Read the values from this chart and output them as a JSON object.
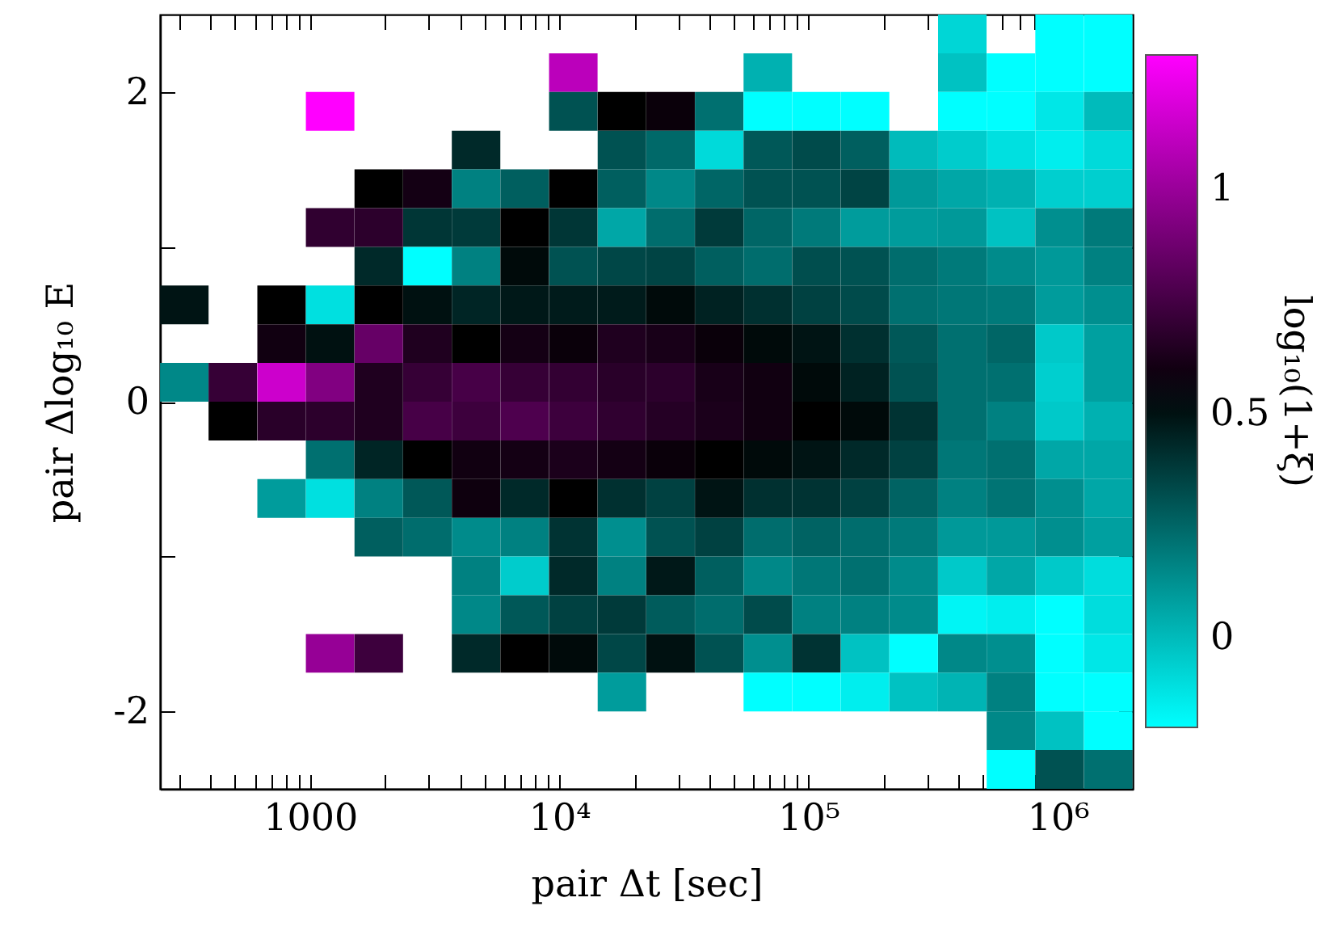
{
  "chart_data": {
    "type": "heatmap",
    "xlabel": "pair Δt [sec]",
    "ylabel": "pair Δlog₁₀ E",
    "clabel": "log₁₀(1+ξ)",
    "log": "x",
    "x": [
      313,
      490,
      769,
      1204,
      1887,
      2958,
      4636,
      7264,
      11385,
      17841,
      27958,
      43815,
      68662,
      107600,
      168620,
      264240,
      414090,
      648920,
      1016900,
      1593600
    ],
    "y": [
      2.375,
      2.125,
      1.875,
      1.625,
      1.375,
      1.125,
      0.875,
      0.625,
      0.375,
      0.125,
      -0.125,
      -0.375,
      -0.625,
      -0.875,
      -1.125,
      -1.375,
      -1.625,
      -1.875,
      -2.125,
      -2.375
    ],
    "xlim": [
      250,
      2000000
    ],
    "xticks": [
      {
        "value": 300,
        "label": null
      },
      {
        "value": 400,
        "label": null
      },
      {
        "value": 500,
        "label": null
      },
      {
        "value": 600,
        "label": null
      },
      {
        "value": 700,
        "label": null
      },
      {
        "value": 800,
        "label": null
      },
      {
        "value": 900,
        "label": null
      },
      1000,
      {
        "value": 2000,
        "label": null
      },
      {
        "value": 3000,
        "label": null
      },
      {
        "value": 4000,
        "label": null
      },
      {
        "value": 5000,
        "label": null
      },
      {
        "value": 6000,
        "label": null
      },
      {
        "value": 7000,
        "label": null
      },
      {
        "value": 8000,
        "label": null
      },
      {
        "value": 9000,
        "label": null
      },
      {
        "value": 10000,
        "label": "10⁴"
      },
      {
        "value": 20000,
        "label": null
      },
      {
        "value": 30000,
        "label": null
      },
      {
        "value": 40000,
        "label": null
      },
      {
        "value": 50000,
        "label": null
      },
      {
        "value": 60000,
        "label": null
      },
      {
        "value": 70000,
        "label": null
      },
      {
        "value": 80000,
        "label": null
      },
      {
        "value": 90000,
        "label": null
      },
      {
        "value": 100000,
        "label": "10⁵"
      },
      {
        "value": 200000,
        "label": null
      },
      {
        "value": 300000,
        "label": null
      },
      {
        "value": 400000,
        "label": null
      },
      {
        "value": 500000,
        "label": null
      },
      {
        "value": 600000,
        "label": null
      },
      {
        "value": 700000,
        "label": null
      },
      {
        "value": 800000,
        "label": null
      },
      {
        "value": 900000,
        "label": null
      },
      {
        "value": 1000000,
        "label": "10⁶"
      }
    ],
    "ylim": [
      -2.5,
      2.5
    ],
    "yticks": [
      -2,
      {
        "value": -1,
        "label": null
      },
      0,
      {
        "value": 1,
        "label": null
      },
      2
    ],
    "clim": [
      -0.2,
      1.3
    ],
    "cticks": [
      0,
      0.5,
      1
    ],
    "cells": [
      [
        null,
        null,
        null,
        null,
        null,
        null,
        null,
        null,
        null,
        null,
        null,
        null,
        null,
        null,
        null,
        null,
        -0.08,
        null,
        -0.2,
        -0.2
      ],
      [
        null,
        null,
        null,
        null,
        null,
        null,
        null,
        null,
        1.1,
        null,
        null,
        null,
        0.03,
        null,
        null,
        null,
        -0.02,
        -0.2,
        -0.2,
        -0.2
      ],
      [
        null,
        null,
        null,
        1.3,
        null,
        null,
        null,
        null,
        0.31,
        0.55,
        0.58,
        0.22,
        -0.2,
        -0.2,
        -0.2,
        null,
        -0.2,
        -0.2,
        -0.13,
        0
      ],
      [
        null,
        null,
        null,
        null,
        null,
        null,
        0.43,
        null,
        null,
        0.31,
        0.24,
        -0.09,
        0.29,
        0.33,
        0.27,
        0,
        -0.05,
        -0.11,
        -0.15,
        -0.09
      ],
      [
        null,
        null,
        null,
        null,
        0.55,
        0.61,
        0.17,
        0.27,
        0.55,
        0.27,
        0.15,
        0.25,
        0.31,
        0.31,
        0.35,
        0.1,
        0.06,
        0.03,
        -0.06,
        -0.06
      ],
      [
        null,
        null,
        null,
        0.69,
        0.68,
        0.39,
        0.38,
        0.55,
        0.39,
        0.06,
        0.23,
        0.38,
        0.25,
        0.19,
        0.09,
        0.09,
        0.1,
        -0.02,
        0.13,
        0.19
      ],
      [
        null,
        null,
        null,
        null,
        0.43,
        -0.2,
        0.17,
        0.52,
        0.31,
        0.34,
        0.35,
        0.27,
        0.23,
        0.32,
        0.31,
        0.23,
        0.19,
        0.14,
        0.1,
        0.17
      ],
      [
        0.49,
        null,
        0.55,
        -0.11,
        0.55,
        0.5,
        0.44,
        0.48,
        0.47,
        0.47,
        0.52,
        0.45,
        0.41,
        0.36,
        0.33,
        0.22,
        0.2,
        0.19,
        0.09,
        0.13
      ],
      [
        null,
        null,
        0.6,
        0.5,
        0.85,
        0.64,
        0.55,
        0.61,
        0.58,
        0.64,
        0.62,
        0.58,
        0.52,
        0.49,
        0.41,
        0.29,
        0.22,
        0.25,
        -0.04,
        0.08
      ],
      [
        0.15,
        0.71,
        1.15,
        0.93,
        0.64,
        0.71,
        0.76,
        0.71,
        0.7,
        0.67,
        0.68,
        0.62,
        0.6,
        0.52,
        0.45,
        0.31,
        0.22,
        0.22,
        -0.06,
        0.08
      ],
      [
        null,
        0.55,
        0.67,
        0.68,
        0.64,
        0.76,
        0.73,
        0.78,
        0.73,
        0.69,
        0.66,
        0.63,
        0.6,
        0.55,
        0.52,
        0.4,
        0.22,
        0.17,
        -0.04,
        0.03
      ],
      [
        null,
        null,
        null,
        0.22,
        0.44,
        0.55,
        0.6,
        0.61,
        0.63,
        0.61,
        0.58,
        0.55,
        0.52,
        0.49,
        0.43,
        0.36,
        0.2,
        0.22,
        0.06,
        0.06
      ],
      [
        null,
        null,
        0.09,
        -0.11,
        0.17,
        0.29,
        0.59,
        0.43,
        0.55,
        0.41,
        0.36,
        0.49,
        0.41,
        0.4,
        0.36,
        0.26,
        0.17,
        0.21,
        0.13,
        0.06
      ],
      [
        null,
        null,
        null,
        null,
        0.27,
        0.23,
        0.14,
        0.17,
        0.4,
        0.13,
        0.31,
        0.36,
        0.23,
        0.26,
        0.23,
        0.19,
        0.1,
        0.1,
        0.13,
        0.08
      ],
      [
        null,
        null,
        null,
        null,
        null,
        null,
        0.17,
        -0.05,
        0.43,
        0.17,
        0.48,
        0.27,
        0.15,
        0.2,
        0.22,
        0.14,
        -0.04,
        0.06,
        -0.04,
        -0.1
      ],
      [
        null,
        null,
        null,
        null,
        null,
        null,
        0.15,
        0.29,
        0.36,
        0.38,
        0.28,
        0.23,
        0.33,
        0.17,
        0.17,
        0.14,
        -0.17,
        -0.15,
        -0.2,
        -0.1
      ],
      [
        null,
        null,
        null,
        0.99,
        0.73,
        null,
        0.43,
        0.55,
        0.52,
        0.34,
        0.5,
        0.31,
        0.13,
        0.4,
        -0.02,
        -0.2,
        0.15,
        0.13,
        -0.2,
        -0.13
      ],
      [
        null,
        null,
        null,
        null,
        null,
        null,
        null,
        null,
        null,
        0.09,
        null,
        null,
        -0.2,
        -0.2,
        -0.15,
        -0.02,
        0.02,
        0.17,
        -0.2,
        -0.2
      ],
      [
        null,
        null,
        null,
        null,
        null,
        null,
        null,
        null,
        null,
        null,
        null,
        null,
        null,
        null,
        null,
        null,
        null,
        0.15,
        -0.02,
        -0.2
      ],
      [
        null,
        null,
        null,
        null,
        null,
        null,
        null,
        null,
        null,
        null,
        null,
        null,
        null,
        null,
        null,
        null,
        null,
        -0.2,
        0.31,
        0.22
      ]
    ]
  }
}
